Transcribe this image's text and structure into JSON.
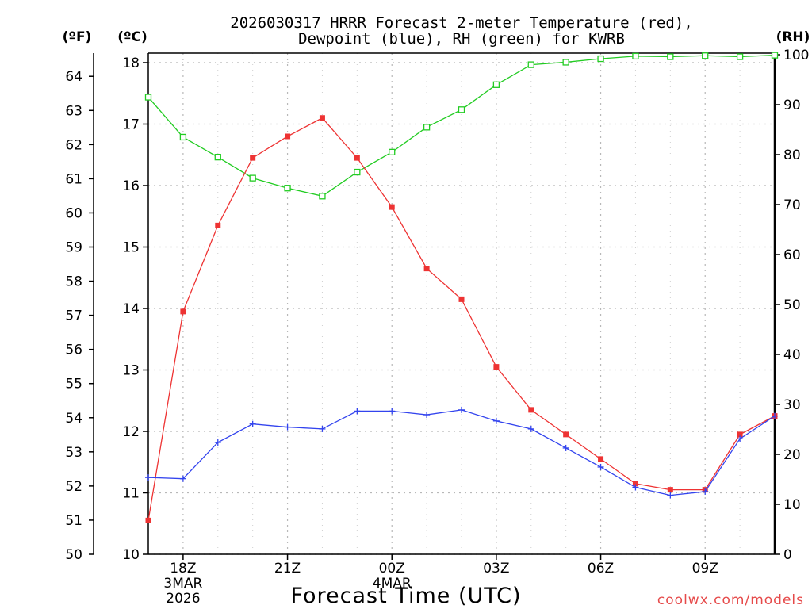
{
  "chart_data": {
    "type": "line",
    "title_line1": "2026030317 HRRR Forecast 2-meter Temperature (red),",
    "title_line2": "Dewpoint (blue), RH (green) for KWRB",
    "xlabel": "Forecast Time (UTC)",
    "watermark": "coolwx.com/models",
    "left_outer_axis": {
      "unit_label": "(ºF)",
      "range": [
        50,
        64.4
      ],
      "ticks": [
        "50",
        "51",
        "52",
        "53",
        "54",
        "55",
        "56",
        "57",
        "58",
        "59",
        "60",
        "61",
        "62",
        "63",
        "64"
      ]
    },
    "left_axis": {
      "unit_label": "(ºC)",
      "range": [
        10,
        18.1
      ],
      "ticks": [
        "10",
        "11",
        "12",
        "13",
        "14",
        "15",
        "16",
        "17",
        "18"
      ]
    },
    "right_axis": {
      "unit_label": "(RH)",
      "range": [
        0,
        100
      ],
      "ticks": [
        "0",
        "10",
        "20",
        "30",
        "40",
        "50",
        "60",
        "70",
        "80",
        "90",
        "100"
      ]
    },
    "x_range": [
      17,
      35
    ],
    "x_ticks": [
      {
        "x": 18,
        "label": "18Z",
        "sub1": "3MAR",
        "sub2": "2026"
      },
      {
        "x": 21,
        "label": "21Z",
        "sub1": "",
        "sub2": ""
      },
      {
        "x": 24,
        "label": "00Z",
        "sub1": "4MAR",
        "sub2": ""
      },
      {
        "x": 27,
        "label": "03Z",
        "sub1": "",
        "sub2": ""
      },
      {
        "x": 30,
        "label": "06Z",
        "sub1": "",
        "sub2": ""
      },
      {
        "x": 33,
        "label": "09Z",
        "sub1": "",
        "sub2": ""
      }
    ],
    "x": [
      17,
      18,
      19,
      20,
      21,
      22,
      23,
      24,
      25,
      26,
      27,
      28,
      29,
      30,
      31,
      32,
      33,
      34,
      35
    ],
    "series": [
      {
        "name": "Temperature",
        "axis": "C",
        "color": "#ee3333",
        "marker": "filled-square",
        "values": [
          10.55,
          13.95,
          15.35,
          16.45,
          16.8,
          17.1,
          16.45,
          15.65,
          14.65,
          14.15,
          13.05,
          12.35,
          11.95,
          11.55,
          11.15,
          11.05,
          11.05,
          11.95,
          12.25
        ]
      },
      {
        "name": "Dewpoint",
        "axis": "C",
        "color": "#3344ee",
        "marker": "plus",
        "values": [
          11.25,
          11.23,
          11.82,
          12.12,
          12.07,
          12.04,
          12.33,
          12.33,
          12.27,
          12.35,
          12.17,
          12.04,
          11.73,
          11.42,
          11.09,
          10.96,
          11.02,
          11.88,
          12.25
        ]
      },
      {
        "name": "RH",
        "axis": "RH",
        "color": "#22cc22",
        "marker": "open-square",
        "values": [
          91.5,
          83.5,
          79.5,
          75.3,
          73.3,
          71.7,
          76.5,
          80.5,
          85.5,
          89.0,
          94.0,
          98.0,
          98.5,
          99.2,
          99.7,
          99.6,
          99.8,
          99.6,
          99.9
        ]
      }
    ]
  }
}
